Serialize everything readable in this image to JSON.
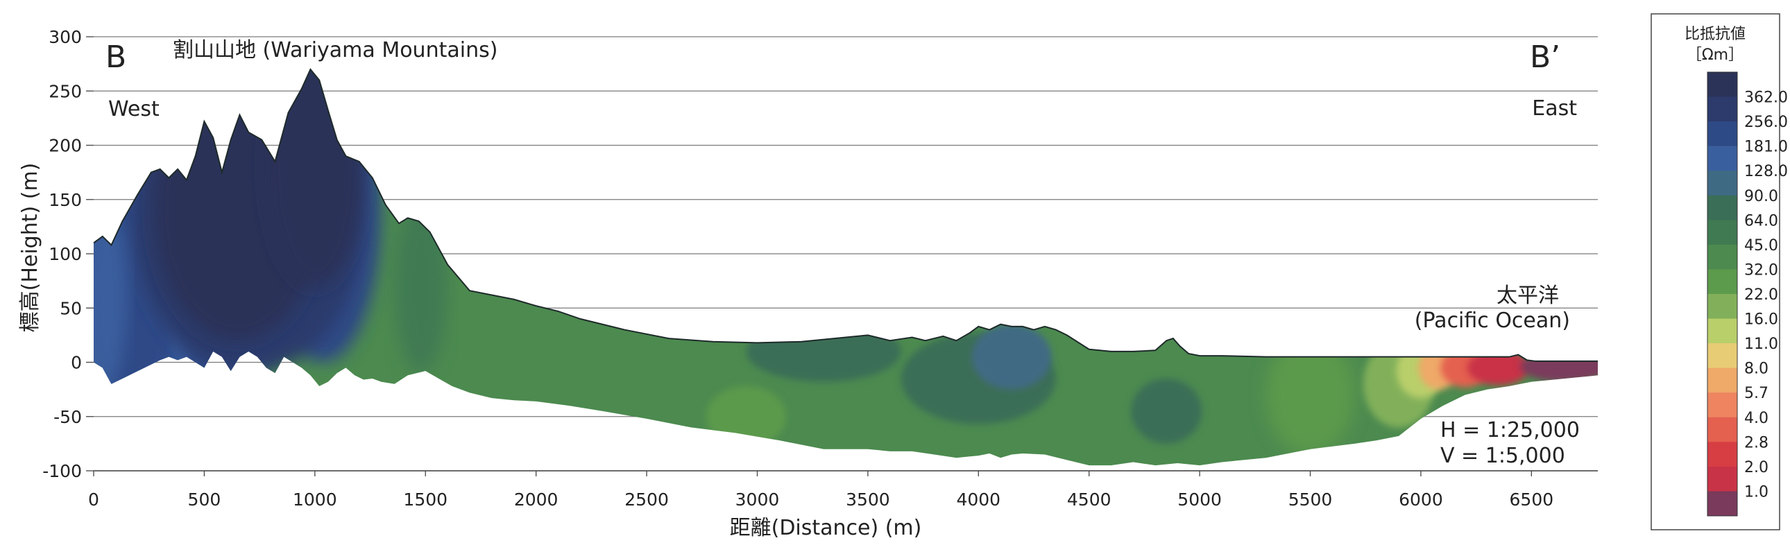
{
  "chart_data": {
    "type": "area",
    "subtype": "resistivity cross-section (filled contour profile)",
    "corner_left": "B",
    "corner_right": "B’",
    "side_left": "West",
    "side_right": "East",
    "mountain_label": "割山山地 (Wariyama Mountains)",
    "ocean_label_jp": "太平洋",
    "ocean_label_en": "(Pacific Ocean)",
    "scale_h": "H = 1:25,000",
    "scale_v": "V = 1:5,000",
    "xlabel": "距離(Distance) (m)",
    "ylabel": "標高(Height) (m)",
    "xlim": [
      0,
      6800
    ],
    "ylim": [
      -100,
      300
    ],
    "x_ticks": [
      "0",
      "500",
      "1000",
      "1500",
      "2000",
      "2500",
      "3000",
      "3500",
      "4000",
      "4500",
      "5000",
      "5500",
      "6000",
      "6500"
    ],
    "y_ticks": [
      "300",
      "250",
      "200",
      "150",
      "100",
      "50",
      "0",
      "-50",
      "-100"
    ],
    "grid": true,
    "surface_profile": {
      "x": [
        0,
        40,
        80,
        130,
        200,
        260,
        300,
        340,
        380,
        420,
        460,
        500,
        540,
        580,
        620,
        660,
        700,
        760,
        820,
        880,
        940,
        980,
        1020,
        1060,
        1100,
        1140,
        1200,
        1260,
        1320,
        1380,
        1420,
        1470,
        1520,
        1600,
        1700,
        1800,
        1900,
        2000,
        2100,
        2200,
        2400,
        2600,
        2800,
        3000,
        3200,
        3400,
        3500,
        3600,
        3700,
        3760,
        3840,
        3900,
        3960,
        4000,
        4050,
        4100,
        4150,
        4200,
        4250,
        4300,
        4350,
        4400,
        4500,
        4600,
        4700,
        4800,
        4850,
        4880,
        4910,
        4950,
        5000,
        5100,
        5300,
        5600,
        5900,
        6200,
        6400,
        6440,
        6480,
        6520,
        6800
      ],
      "y": [
        110,
        116,
        108,
        130,
        155,
        175,
        178,
        170,
        178,
        168,
        190,
        222,
        207,
        175,
        205,
        228,
        212,
        205,
        185,
        230,
        252,
        270,
        260,
        232,
        205,
        190,
        185,
        170,
        145,
        128,
        133,
        130,
        120,
        90,
        66,
        62,
        58,
        52,
        47,
        40,
        30,
        22,
        19,
        18,
        19,
        23,
        25,
        20,
        23,
        20,
        24,
        20,
        27,
        33,
        30,
        35,
        33,
        33,
        30,
        33,
        30,
        25,
        12,
        10,
        10,
        11,
        20,
        22,
        15,
        8,
        6,
        6,
        5,
        5,
        5,
        5,
        5,
        7,
        2,
        1,
        1
      ]
    },
    "section_bottom": {
      "x": [
        0,
        40,
        80,
        130,
        200,
        260,
        300,
        340,
        380,
        420,
        460,
        500,
        540,
        580,
        620,
        660,
        700,
        740,
        780,
        820,
        860,
        900,
        940,
        980,
        1020,
        1060,
        1100,
        1140,
        1180,
        1220,
        1260,
        1300,
        1360,
        1420,
        1500,
        1560,
        1620,
        1700,
        1800,
        1900,
        2000,
        2150,
        2300,
        2500,
        2700,
        2900,
        3100,
        3300,
        3500,
        3600,
        3700,
        3800,
        3900,
        4000,
        4050,
        4100,
        4150,
        4200,
        4300,
        4400,
        4500,
        4600,
        4700,
        4800,
        4900,
        5000,
        5100,
        5300,
        5500,
        5700,
        5800,
        5900,
        5950,
        6000,
        6100,
        6200,
        6300,
        6400,
        6500,
        6600,
        6700,
        6800
      ],
      "y": [
        0,
        -5,
        -20,
        -15,
        -8,
        -2,
        2,
        5,
        2,
        5,
        0,
        -5,
        10,
        5,
        -8,
        5,
        10,
        5,
        -5,
        -10,
        5,
        0,
        -5,
        -12,
        -22,
        -18,
        -10,
        -5,
        -12,
        -16,
        -15,
        -18,
        -20,
        -12,
        -8,
        -15,
        -22,
        -28,
        -33,
        -35,
        -36,
        -40,
        -45,
        -52,
        -60,
        -65,
        -72,
        -80,
        -80,
        -82,
        -82,
        -85,
        -88,
        -86,
        -84,
        -88,
        -85,
        -84,
        -85,
        -90,
        -95,
        -95,
        -92,
        -95,
        -93,
        -95,
        -92,
        -88,
        -80,
        -75,
        -72,
        -68,
        -60,
        -52,
        -40,
        -30,
        -25,
        -22,
        -18,
        -16,
        -14,
        -12
      ]
    },
    "scale_breaks": [
      1.0,
      2.0,
      2.8,
      4.0,
      5.7,
      8.0,
      11.0,
      16.0,
      22.0,
      32.0,
      45.0,
      64.0,
      90.0,
      128.0,
      181.0,
      256.0,
      362.0
    ],
    "legend": {
      "title": "比抵抗値",
      "unit": "［Ωm］",
      "labels": [
        "362.0",
        "256.0",
        "181.0",
        "128.0",
        "90.0",
        "64.0",
        "45.0",
        "32.0",
        "22.0",
        "16.0",
        "11.0",
        "8.0",
        "5.7",
        "4.0",
        "2.8",
        "2.0",
        "1.0"
      ],
      "colors": [
        "#2b3358",
        "#2c3a6c",
        "#2e4a86",
        "#3a5f9e",
        "#3f6a84",
        "#3a6e57",
        "#3f7a52",
        "#4c8a4f",
        "#5c9a4c",
        "#82b05a",
        "#b9cf6a",
        "#e8cc75",
        "#efa968",
        "#ee8460",
        "#e4604f",
        "#d63e44",
        "#c93347",
        "#7a3a5c"
      ]
    }
  }
}
